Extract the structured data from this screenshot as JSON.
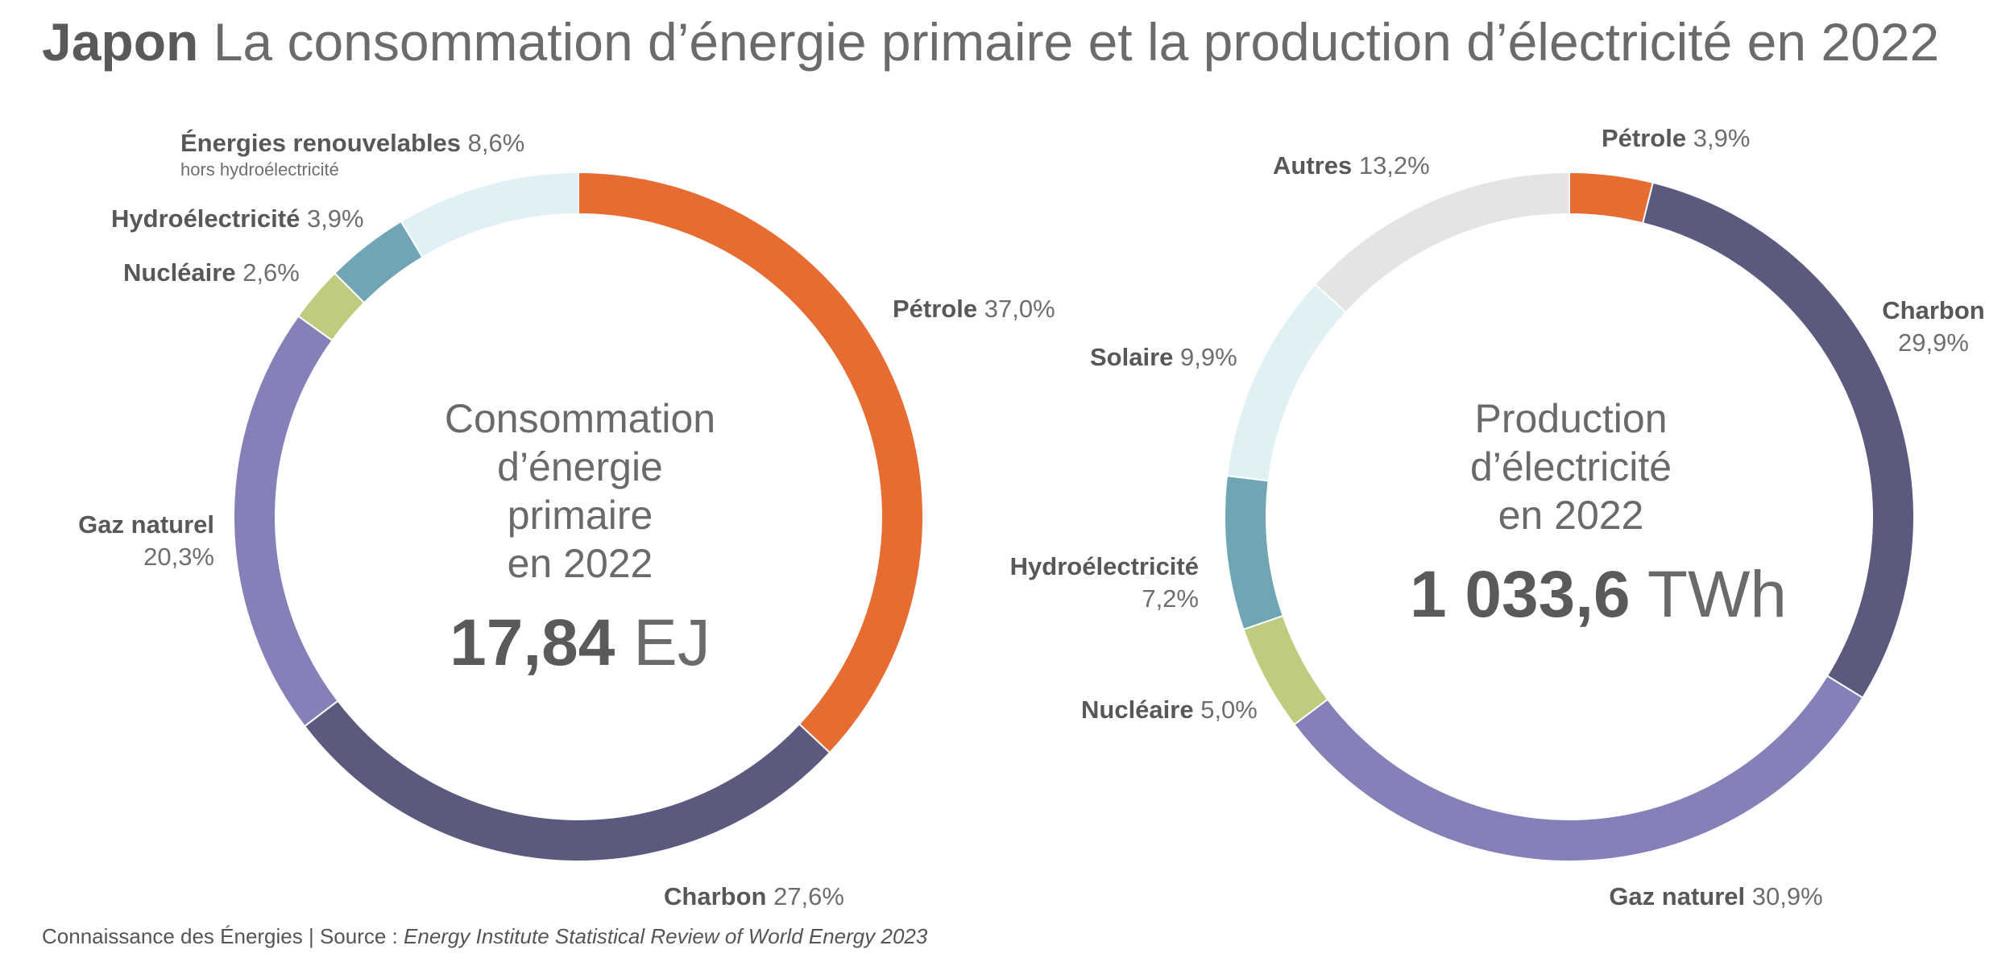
{
  "header": {
    "country": "Japon",
    "subtitle": "La consommation d’énergie primaire et la production d’électricité en 2022"
  },
  "chart_data": [
    {
      "type": "pie",
      "variant": "donut",
      "center": {
        "lines": [
          "Consommation",
          "d’énergie primaire",
          "en 2022"
        ],
        "total_value": "17,84",
        "total_unit": "EJ"
      },
      "categories": [
        "Pétrole",
        "Charbon",
        "Gaz naturel",
        "Nucléaire",
        "Hydroélectricité",
        "Énergies renouvelables"
      ],
      "values": [
        37.0,
        27.6,
        20.3,
        2.6,
        3.9,
        8.6
      ],
      "value_labels": [
        "37,0%",
        "27,6%",
        "20,3%",
        "2,6%",
        "3,9%",
        "8,6%"
      ],
      "notes": {
        "Énergies renouvelables": "hors hydroélectricité"
      },
      "colors": [
        "#e66c32",
        "#5b597e",
        "#8580b8",
        "#bfcc7d",
        "#6fa5b4",
        "#dff1f5"
      ]
    },
    {
      "type": "pie",
      "variant": "donut",
      "center": {
        "lines": [
          "Production",
          "d’électricité",
          "en 2022"
        ],
        "total_value": "1 033,6",
        "total_unit": "TWh"
      },
      "categories": [
        "Pétrole",
        "Charbon",
        "Gaz naturel",
        "Nucléaire",
        "Hydroélectricité",
        "Solaire",
        "Autres"
      ],
      "values": [
        3.9,
        29.9,
        30.9,
        5.0,
        7.2,
        9.9,
        13.2
      ],
      "value_labels": [
        "3,9%",
        "29,9%",
        "30,9%",
        "5,0%",
        "7,2%",
        "9,9%",
        "13,2%"
      ],
      "notes": {},
      "colors": [
        "#e66c32",
        "#5b597e",
        "#8580b8",
        "#bfcc7d",
        "#6fa5b4",
        "#dff1f5",
        "#e4e4e4"
      ]
    }
  ],
  "footer": {
    "prefix": "Connaissance des Énergies | Source : ",
    "source": "Energy Institute Statistical Review of World Energy 2023"
  }
}
